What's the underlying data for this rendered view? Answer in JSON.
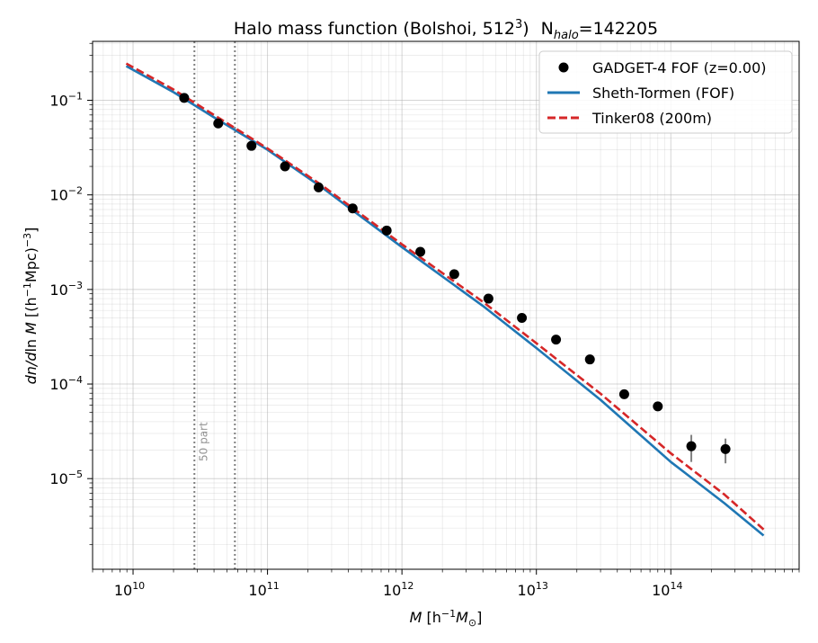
{
  "chart_data": {
    "type": "scatter",
    "title": {
      "main": "Halo mass function (Bolshoi, 512",
      "main_sup": "3",
      "main_close": ")",
      "count_prefix": "N",
      "count_sub": "halo",
      "count_value": "=142205"
    },
    "xlabel": {
      "var": "M",
      "open": " [h",
      "exp": "−1",
      "unit": "M",
      "unit_sub": "⊙",
      "close": "]"
    },
    "ylabel": {
      "lead": "dn/d",
      "ln": "ln ",
      "var": "M",
      "open": " [(h",
      "exp1": "−1",
      "mid": "Mpc)",
      "exp2": "−3",
      "close": "]"
    },
    "x_scale": "log",
    "y_scale": "log",
    "xlim": [
      5000000000.0,
      900000000000000.0
    ],
    "ylim": [
      1.1e-06,
      0.42
    ],
    "x_tick_labels": [
      {
        "base": "10",
        "exp": "10",
        "value": 10000000000.0
      },
      {
        "base": "10",
        "exp": "11",
        "value": 100000000000.0
      },
      {
        "base": "10",
        "exp": "12",
        "value": 1000000000000.0
      },
      {
        "base": "10",
        "exp": "13",
        "value": 10000000000000.0
      },
      {
        "base": "10",
        "exp": "14",
        "value": 100000000000000.0
      }
    ],
    "y_tick_labels": [
      {
        "base": "10",
        "exp": "−1",
        "value": 0.1
      },
      {
        "base": "10",
        "exp": "−2",
        "value": 0.01
      },
      {
        "base": "10",
        "exp": "−3",
        "value": 0.001
      },
      {
        "base": "10",
        "exp": "−4",
        "value": 0.0001
      },
      {
        "base": "10",
        "exp": "−5",
        "value": 1e-05
      }
    ],
    "grid": true,
    "legend_position": "top-right",
    "series": [
      {
        "name": "GADGET-4 FOF (z=0.00)",
        "kind": "points",
        "color": "#000000",
        "x": [
          24000000000.0,
          43000000000.0,
          76000000000.0,
          135000000000.0,
          240000000000.0,
          430000000000.0,
          770000000000.0,
          1370000000000.0,
          2450000000000.0,
          4400000000000.0,
          7800000000000.0,
          14000000000000.0,
          25000000000000.0,
          45000000000000.0,
          80000000000000.0,
          142000000000000.0,
          255000000000000.0
        ],
        "y": [
          0.106,
          0.057,
          0.033,
          0.02,
          0.012,
          0.0072,
          0.0042,
          0.0025,
          0.00145,
          0.0008,
          0.0005,
          0.000295,
          0.000182,
          7.8e-05,
          5.8e-05,
          2.2e-05,
          2.05e-05
        ],
        "yerr": [
          0,
          0,
          0,
          0,
          0,
          0,
          0,
          0,
          0,
          0,
          0,
          0,
          0,
          5e-06,
          5e-06,
          7e-06,
          6e-06
        ]
      },
      {
        "name": "Sheth-Tormen (FOF)",
        "kind": "line",
        "color": "#1f77b4",
        "style": "solid",
        "x": [
          8900000000.0,
          20000000000.0,
          40000000000.0,
          100000000000.0,
          250000000000.0,
          1000000000000.0,
          4000000000000.0,
          10000000000000.0,
          30000000000000.0,
          100000000000000.0,
          250000000000000.0,
          490000000000000.0
        ],
        "y": [
          0.23,
          0.122,
          0.066,
          0.03,
          0.0122,
          0.0028,
          0.00067,
          0.00024,
          6.8e-05,
          1.5e-05,
          5.5e-06,
          2.5e-06
        ]
      },
      {
        "name": "Tinker08 (200m)",
        "kind": "line",
        "color": "#d62728",
        "style": "dashed",
        "x": [
          8900000000.0,
          20000000000.0,
          40000000000.0,
          100000000000.0,
          250000000000.0,
          1000000000000.0,
          4000000000000.0,
          10000000000000.0,
          30000000000000.0,
          100000000000000.0,
          250000000000000.0,
          490000000000000.0
        ],
        "y": [
          0.245,
          0.13,
          0.07,
          0.031,
          0.0128,
          0.003,
          0.00074,
          0.00027,
          7.9e-05,
          1.85e-05,
          6.8e-06,
          2.9e-06
        ]
      }
    ],
    "vlines": [
      {
        "x": 28600000000.0,
        "color": "#808080",
        "style": "dotted",
        "label": "50 part"
      },
      {
        "x": 57200000000.0,
        "color": "#808080",
        "style": "dotted",
        "label": ""
      }
    ]
  }
}
